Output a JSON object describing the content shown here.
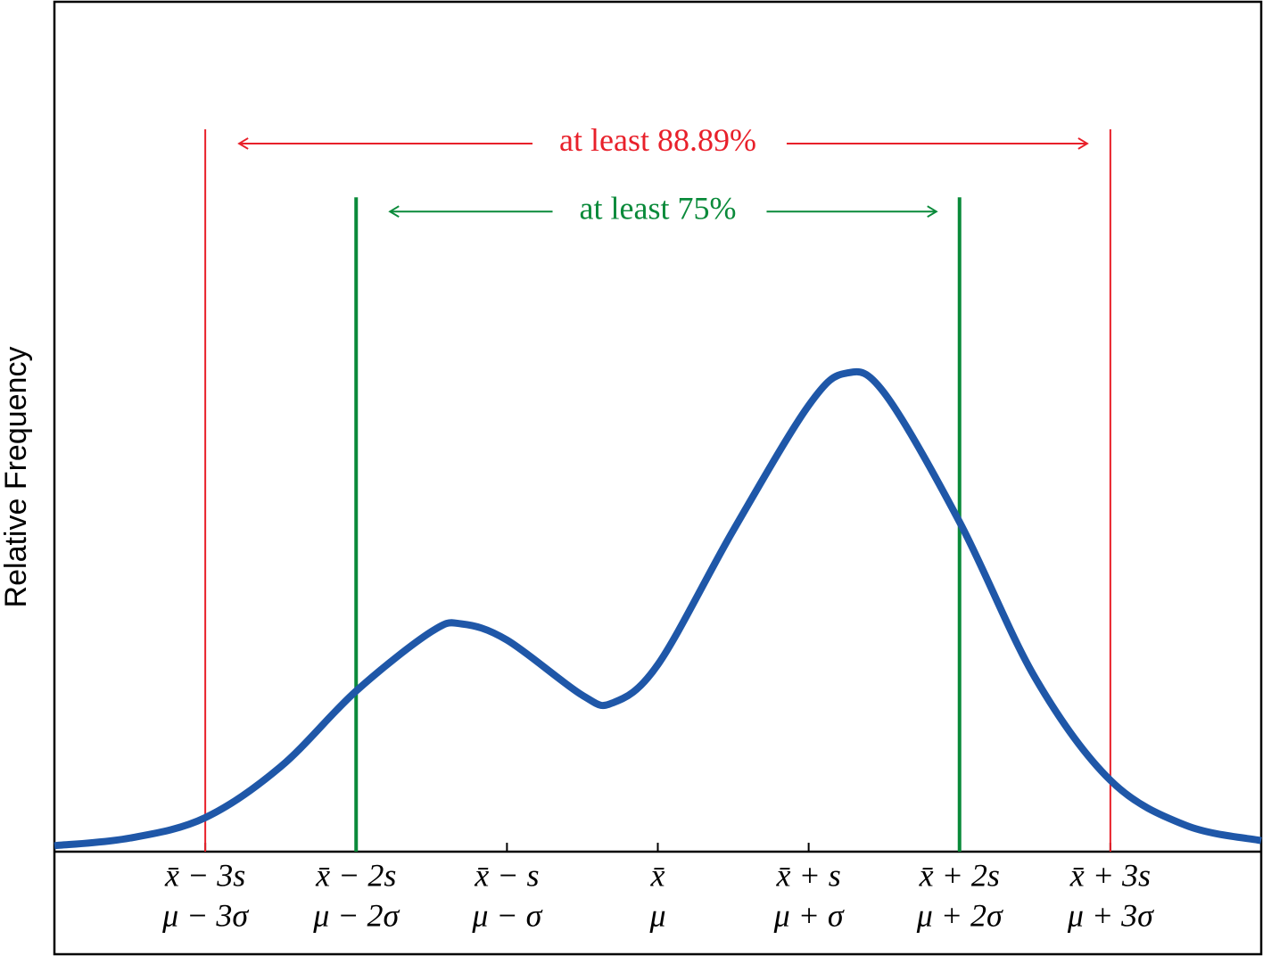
{
  "chart_data": {
    "type": "line",
    "y_label": "Relative Frequency",
    "x": [
      -4,
      -3.5,
      -3,
      -2.5,
      -2,
      -1.5,
      -1.3,
      -1,
      -0.5,
      -0.3,
      0,
      0.5,
      1,
      1.25,
      1.5,
      2,
      2.5,
      3,
      3.5,
      4
    ],
    "series": [
      {
        "color": "#1f57a8",
        "values": [
          0.007,
          0.016,
          0.04,
          0.1,
          0.189,
          0.259,
          0.268,
          0.249,
          0.184,
          0.175,
          0.22,
          0.378,
          0.525,
          0.563,
          0.54,
          0.388,
          0.205,
          0.084,
          0.031,
          0.013
        ]
      }
    ],
    "xlim": [
      -4,
      4
    ],
    "ylim": [
      0,
      1
    ],
    "xticks": [
      {
        "value": -3,
        "label": "x̄ − 3s"
      },
      {
        "value": -2,
        "label": "x̄ − 2s"
      },
      {
        "value": -1,
        "label": "x̄ − s"
      },
      {
        "value": 0,
        "label": "x̄"
      },
      {
        "value": 1,
        "label": "x̄ + s"
      },
      {
        "value": 2,
        "label": "x̄ + 2s"
      },
      {
        "value": 3,
        "label": "x̄ + 3s"
      }
    ],
    "xticklabels2": [
      "μ − 3σ",
      "μ − 2σ",
      "μ − σ",
      "μ",
      "μ + σ",
      "μ + 2σ",
      "μ + 3σ"
    ],
    "annotations": [
      {
        "text": "at least 88.89%",
        "color": "#e8202a",
        "x": [
          -3,
          3
        ],
        "y": 0.85
      },
      {
        "text": "at least 75%",
        "color": "#0a8a3a",
        "x": [
          -2,
          2
        ],
        "y": 0.77
      }
    ]
  }
}
